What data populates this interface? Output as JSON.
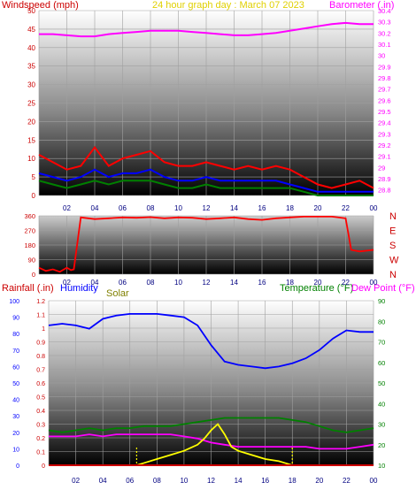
{
  "header": {
    "left_label": "Windspeed (mph)",
    "title": "24 hour graph day : March 07 2023",
    "right_label": "Barometer (.in)"
  },
  "colors": {
    "wind_label": "#cc0000",
    "title": "#e0d000",
    "baro": "#ff00ff",
    "rain": "#cc0000",
    "humidity": "#0000ff",
    "solar": "#808000",
    "temp": "#008000",
    "dew": "#ff00ff",
    "gust": "#ff0000",
    "avg": "#0000ff",
    "low": "#008000",
    "dir": "#ff0000",
    "solar_line": "#ffff00"
  },
  "direction_labels": [
    "N",
    "W",
    "S",
    "E",
    "N"
  ],
  "bottom_labels": {
    "rain": "Rainfall (.in)",
    "humidity": "Humidity",
    "solar": "Solar",
    "temp": "Temperature (°F)",
    "dew": "Dew Point (°F)"
  },
  "chart_data": [
    {
      "type": "line",
      "xlabel": "",
      "x_ticks": [
        "02",
        "04",
        "06",
        "08",
        "10",
        "12",
        "14",
        "16",
        "18",
        "20",
        "22",
        "00"
      ],
      "left_axis": {
        "ylabel": "Windspeed (mph)",
        "ylim": [
          0,
          50
        ],
        "ticks": [
          "0",
          "5",
          "10",
          "15",
          "20",
          "25",
          "30",
          "35",
          "40",
          "45",
          "50"
        ]
      },
      "right_axis": {
        "ylabel": "Barometer (.in)",
        "ylim": [
          28.75,
          30.4
        ],
        "ticks": [
          "28.8",
          "28.9",
          "29",
          "29.1",
          "29.2",
          "29.3",
          "29.4",
          "29.5",
          "29.6",
          "29.7",
          "29.8",
          "29.9",
          "30",
          "30.1",
          "30.2",
          "30.3",
          "30.4"
        ]
      },
      "series": [
        {
          "name": "Barometer (.in)",
          "axis": "right",
          "color": "#ff00ff",
          "x": [
            0,
            1,
            2,
            3,
            4,
            5,
            6,
            7,
            8,
            9,
            10,
            11,
            12,
            13,
            14,
            15,
            16,
            17,
            18,
            19,
            20,
            21,
            22,
            23,
            24
          ],
          "y": [
            30.19,
            30.19,
            30.18,
            30.17,
            30.17,
            30.19,
            30.2,
            30.21,
            30.22,
            30.22,
            30.22,
            30.21,
            30.2,
            30.19,
            30.18,
            30.18,
            30.19,
            30.2,
            30.22,
            30.24,
            30.26,
            30.28,
            30.29,
            30.28,
            30.28
          ]
        },
        {
          "name": "Gust",
          "color": "#ff0000",
          "x": [
            0,
            1,
            2,
            3,
            4,
            5,
            6,
            7,
            8,
            9,
            10,
            11,
            12,
            13,
            14,
            15,
            16,
            17,
            18,
            19,
            20,
            21,
            22,
            23,
            24
          ],
          "y": [
            11,
            9,
            7,
            8,
            13,
            8,
            10,
            11,
            12,
            9,
            8,
            8,
            9,
            8,
            7,
            8,
            7,
            8,
            7,
            5,
            3,
            2,
            3,
            4,
            2
          ]
        },
        {
          "name": "Average",
          "color": "#0000ff",
          "x": [
            0,
            1,
            2,
            3,
            4,
            5,
            6,
            7,
            8,
            9,
            10,
            11,
            12,
            13,
            14,
            15,
            16,
            17,
            18,
            19,
            20,
            21,
            22,
            23,
            24
          ],
          "y": [
            6,
            5,
            4,
            5,
            7,
            5,
            6,
            6,
            7,
            5,
            4,
            4,
            5,
            4,
            4,
            4,
            4,
            4,
            3,
            2,
            1,
            1,
            1,
            1,
            1
          ]
        },
        {
          "name": "Low",
          "color": "#008000",
          "x": [
            0,
            1,
            2,
            3,
            4,
            5,
            6,
            7,
            8,
            9,
            10,
            11,
            12,
            13,
            14,
            15,
            16,
            17,
            18,
            19,
            20,
            21,
            22,
            23,
            24
          ],
          "y": [
            4,
            3,
            2,
            3,
            4,
            3,
            4,
            4,
            4,
            3,
            2,
            2,
            3,
            2,
            2,
            2,
            2,
            2,
            2,
            1,
            0,
            0,
            0,
            0,
            0
          ]
        }
      ]
    },
    {
      "type": "line",
      "ylim": [
        0,
        360
      ],
      "ticks": [
        "0",
        "90",
        "180",
        "270",
        "360"
      ],
      "x_ticks": [
        "02",
        "04",
        "06",
        "08",
        "10",
        "12",
        "14",
        "16",
        "18",
        "20",
        "22",
        "00"
      ],
      "series": [
        {
          "name": "Wind direction",
          "color": "#ff0000",
          "x": [
            0,
            0.5,
            1,
            1.5,
            2,
            2.3,
            2.5,
            3,
            4,
            5,
            6,
            7,
            8,
            9,
            10,
            11,
            12,
            13,
            14,
            15,
            16,
            17,
            18,
            19,
            20,
            21,
            22,
            22.4,
            23,
            24
          ],
          "y": [
            40,
            20,
            30,
            15,
            40,
            25,
            30,
            350,
            340,
            345,
            350,
            348,
            352,
            345,
            350,
            348,
            340,
            345,
            350,
            340,
            335,
            345,
            350,
            355,
            355,
            355,
            345,
            150,
            140,
            150
          ]
        }
      ]
    },
    {
      "type": "line",
      "x_ticks": [
        "02",
        "04",
        "06",
        "08",
        "10",
        "12",
        "14",
        "16",
        "18",
        "20",
        "22",
        "00"
      ],
      "left_axes": [
        {
          "ylabel": "Rainfall (.in)",
          "ylim": [
            0,
            1.2
          ],
          "ticks": [
            "0",
            "0.1",
            "0.2",
            "0.3",
            "0.4",
            "0.5",
            "0.6",
            "0.7",
            "0.8",
            "0.9",
            "1",
            "1.1",
            "1.2"
          ]
        },
        {
          "ylabel": "Humidity",
          "ylim": [
            0,
            100
          ],
          "ticks": [
            "0",
            "10",
            "20",
            "30",
            "40",
            "50",
            "60",
            "70",
            "80",
            "90",
            "100"
          ]
        }
      ],
      "right_axis": {
        "ylabel": "Temperature (°F)",
        "ylim": [
          10,
          90
        ],
        "ticks": [
          "10",
          "20",
          "30",
          "40",
          "50",
          "60",
          "70",
          "80",
          "90"
        ]
      },
      "series": [
        {
          "name": "Humidity",
          "axis": "humidity",
          "color": "#0000ff",
          "x": [
            0,
            1,
            2,
            3,
            4,
            5,
            6,
            7,
            8,
            9,
            10,
            11,
            12,
            13,
            14,
            15,
            16,
            17,
            18,
            19,
            20,
            21,
            22,
            23,
            24
          ],
          "y": [
            85,
            86,
            85,
            83,
            89,
            91,
            92,
            92,
            92,
            91,
            90,
            85,
            73,
            63,
            61,
            60,
            59,
            60,
            62,
            65,
            70,
            77,
            82,
            81,
            81
          ]
        },
        {
          "name": "Temperature (°F)",
          "axis": "temp",
          "color": "#008000",
          "x": [
            0,
            1,
            2,
            3,
            4,
            5,
            6,
            7,
            8,
            9,
            10,
            11,
            12,
            13,
            14,
            15,
            16,
            17,
            18,
            19,
            20,
            21,
            22,
            23,
            24
          ],
          "y": [
            27,
            26,
            27,
            28,
            27,
            28,
            28,
            29,
            29,
            29,
            30,
            31,
            32,
            33,
            33,
            33,
            33,
            33,
            32,
            31,
            29,
            27,
            26,
            27,
            28
          ]
        },
        {
          "name": "Dew Point (°F)",
          "axis": "temp",
          "color": "#ff00ff",
          "x": [
            0,
            1,
            2,
            3,
            4,
            5,
            6,
            7,
            8,
            9,
            10,
            11,
            12,
            13,
            14,
            15,
            16,
            17,
            18,
            19,
            20,
            21,
            22,
            23,
            24
          ],
          "y": [
            24,
            24,
            24,
            25,
            24,
            25,
            25,
            25,
            25,
            25,
            24,
            23,
            21,
            20,
            19,
            19,
            19,
            19,
            19,
            19,
            18,
            18,
            18,
            19,
            20
          ]
        },
        {
          "name": "Solar",
          "axis": "temp",
          "color": "#ffff00",
          "x": [
            6.5,
            7,
            8,
            9,
            10,
            11,
            11.5,
            12,
            12.5,
            13,
            13.5,
            14,
            15,
            16,
            17,
            17.5,
            18
          ],
          "y": [
            10,
            11,
            13,
            15,
            17,
            20,
            23,
            27,
            30,
            25,
            19,
            17,
            15,
            13,
            12,
            11,
            10
          ]
        },
        {
          "name": "Rainfall (.in)",
          "axis": "rain",
          "color": "#cc0000",
          "x": [
            0,
            24
          ],
          "y": [
            0,
            0
          ]
        }
      ]
    }
  ]
}
